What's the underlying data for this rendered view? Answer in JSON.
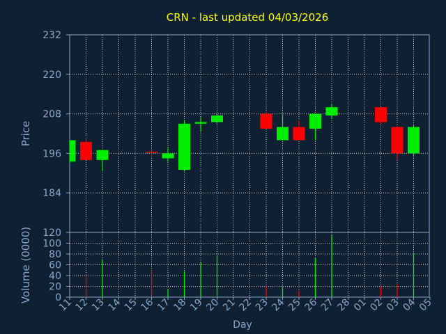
{
  "chart_data": {
    "type": "candlestick",
    "title": "CRN - last updated 04/03/2026",
    "xlabel": "Day",
    "price_panel": {
      "ylabel": "Price",
      "ylim": [
        172,
        232
      ],
      "yticks": [
        232,
        220,
        208,
        196,
        184
      ]
    },
    "volume_panel": {
      "ylabel": "Volume (0000)",
      "ylim": [
        0,
        120
      ],
      "yticks": [
        120,
        100,
        80,
        60,
        40,
        20,
        0
      ]
    },
    "x_labels": [
      "11",
      "12",
      "13",
      "14",
      "15",
      "16",
      "17",
      "18",
      "19",
      "20",
      "21",
      "22",
      "23",
      "24",
      "25",
      "26",
      "27",
      "28",
      "01",
      "02",
      "03",
      "04",
      "05"
    ],
    "grid": true,
    "colors": {
      "background": "#0f2033",
      "axes_text": "#8aa8c8",
      "title": "#ffff00",
      "grid": "#ffffff",
      "up": "#00ee00",
      "down": "#ff0000"
    },
    "candles": [
      {
        "x": "11",
        "open": 193.5,
        "high": 200.0,
        "low": 193.0,
        "close": 200.0,
        "volume": 0
      },
      {
        "x": "12",
        "open": 199.5,
        "high": 201.0,
        "low": 194.0,
        "close": 194.0,
        "volume": 42
      },
      {
        "x": "13",
        "open": 194.0,
        "high": 197.0,
        "low": 190.5,
        "close": 197.0,
        "volume": 70
      },
      {
        "x": "16",
        "open": 196.5,
        "high": 196.8,
        "low": 195.0,
        "close": 196.2,
        "volume": 50
      },
      {
        "x": "17",
        "open": 194.5,
        "high": 198.0,
        "low": 193.5,
        "close": 196.0,
        "volume": 15
      },
      {
        "x": "18",
        "open": 191.0,
        "high": 206.0,
        "low": 190.5,
        "close": 205.0,
        "volume": 48
      },
      {
        "x": "19",
        "open": 205.0,
        "high": 207.0,
        "low": 202.5,
        "close": 205.5,
        "volume": 65
      },
      {
        "x": "20",
        "open": 205.5,
        "high": 208.0,
        "low": 205.0,
        "close": 207.5,
        "volume": 78
      },
      {
        "x": "23",
        "open": 208.0,
        "high": 208.5,
        "low": 203.5,
        "close": 203.5,
        "volume": 20
      },
      {
        "x": "24",
        "open": 200.0,
        "high": 208.0,
        "low": 200.0,
        "close": 204.0,
        "volume": 20
      },
      {
        "x": "25",
        "open": 204.0,
        "high": 206.0,
        "low": 200.0,
        "close": 200.0,
        "volume": 12
      },
      {
        "x": "26",
        "open": 203.5,
        "high": 208.0,
        "low": 200.0,
        "close": 208.0,
        "volume": 72
      },
      {
        "x": "27",
        "open": 207.5,
        "high": 211.0,
        "low": 206.5,
        "close": 210.0,
        "volume": 115
      },
      {
        "x": "02",
        "open": 210.0,
        "high": 210.0,
        "low": 205.0,
        "close": 205.5,
        "volume": 20
      },
      {
        "x": "03",
        "open": 204.0,
        "high": 204.0,
        "low": 194.0,
        "close": 196.0,
        "volume": 25
      },
      {
        "x": "04",
        "open": 196.0,
        "high": 204.5,
        "low": 195.0,
        "close": 204.0,
        "volume": 82
      }
    ]
  }
}
